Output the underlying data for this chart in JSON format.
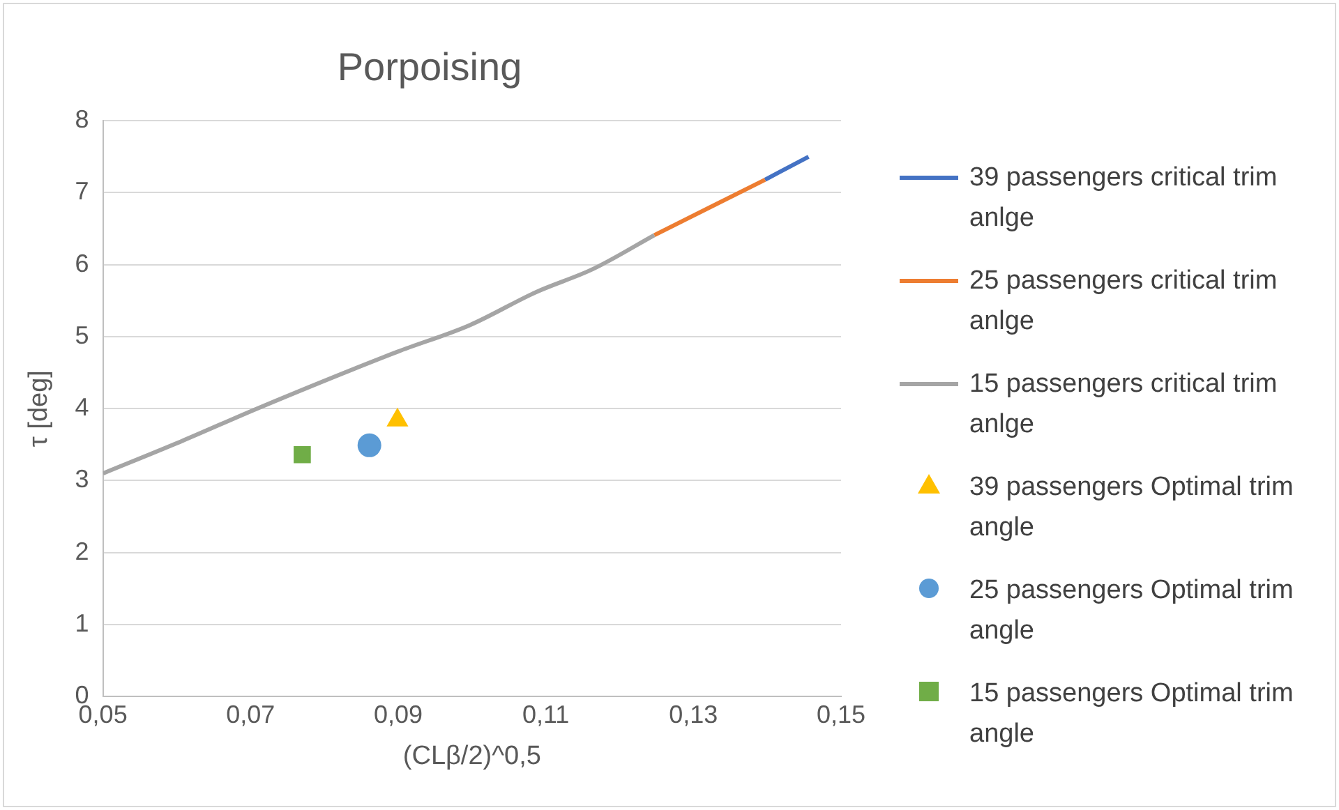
{
  "chart_data": {
    "type": "line",
    "title": "Porpoising",
    "xlabel": "(CLβ/2)^0,5",
    "ylabel": "τ [deg]",
    "xlim": [
      0.05,
      0.15
    ],
    "xticks": [
      {
        "value": 0.05,
        "label": "0,05"
      },
      {
        "value": 0.07,
        "label": "0,07"
      },
      {
        "value": 0.09,
        "label": "0,09"
      },
      {
        "value": 0.11,
        "label": "0,11"
      },
      {
        "value": 0.13,
        "label": "0,13"
      },
      {
        "value": 0.15,
        "label": "0,15"
      }
    ],
    "ylim": [
      0,
      8
    ],
    "yticks": [
      0,
      1,
      2,
      3,
      4,
      5,
      6,
      7,
      8
    ],
    "grid": "y",
    "legend": "right",
    "line_style": "solid",
    "series": [
      {
        "name": "39 passengers critical trim anlge",
        "type": "line",
        "color": "#4472c4",
        "marker": "none",
        "x": [
          0.1397,
          0.1456
        ],
        "values": [
          7.18,
          7.5
        ]
      },
      {
        "name": "25 passengers critical trim anlge",
        "type": "line",
        "color": "#ed7d31",
        "marker": "none",
        "x": [
          0.1247,
          0.1397
        ],
        "values": [
          6.41,
          7.18
        ]
      },
      {
        "name": "15 passengers critical trim anlge",
        "type": "line",
        "color": "#a5a5a5",
        "marker": "none",
        "x": [
          0.05,
          0.0607,
          0.0711,
          0.0899,
          0.0997,
          0.1087,
          0.1164,
          0.1247
        ],
        "values": [
          3.1,
          3.55,
          4.01,
          4.79,
          5.16,
          5.62,
          5.94,
          6.41
        ]
      },
      {
        "name": "39 passengers Optimal trim angle",
        "type": "scatter",
        "color": "#ffc000",
        "marker": "triangle",
        "x": [
          0.0899
        ],
        "values": [
          3.84
        ]
      },
      {
        "name": "25 passengers Optimal trim angle",
        "type": "scatter",
        "color": "#5b9bd5",
        "marker": "circle",
        "x": [
          0.0861
        ],
        "values": [
          3.49
        ]
      },
      {
        "name": "15 passengers Optimal trim angle",
        "type": "scatter",
        "color": "#70ad47",
        "marker": "square",
        "x": [
          0.077
        ],
        "values": [
          3.36
        ]
      }
    ]
  }
}
